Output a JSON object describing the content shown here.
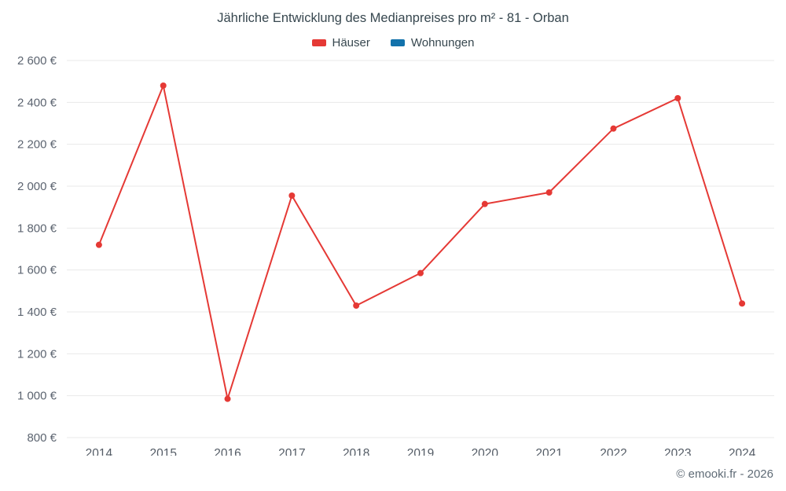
{
  "chart_data": {
    "type": "line",
    "title": "Jährliche Entwicklung des Medianpreises pro m² - 81 - Orban",
    "categories": [
      "2014",
      "2015",
      "2016",
      "2017",
      "2018",
      "2019",
      "2020",
      "2021",
      "2022",
      "2023",
      "2024"
    ],
    "series": [
      {
        "name": "Häuser",
        "color": "#e53935",
        "values": [
          1720,
          2480,
          985,
          1955,
          1430,
          1585,
          1915,
          1970,
          2275,
          2420,
          1440
        ]
      },
      {
        "name": "Wohnungen",
        "color": "#1272ab",
        "values": []
      }
    ],
    "ylabel": "",
    "xlabel": "",
    "ylim": [
      800,
      2600
    ],
    "ytick_step": 200,
    "y_unit": "€",
    "grid": true,
    "legend_position": "top"
  },
  "footer": {
    "credit": "© emooki.fr - 2026"
  }
}
